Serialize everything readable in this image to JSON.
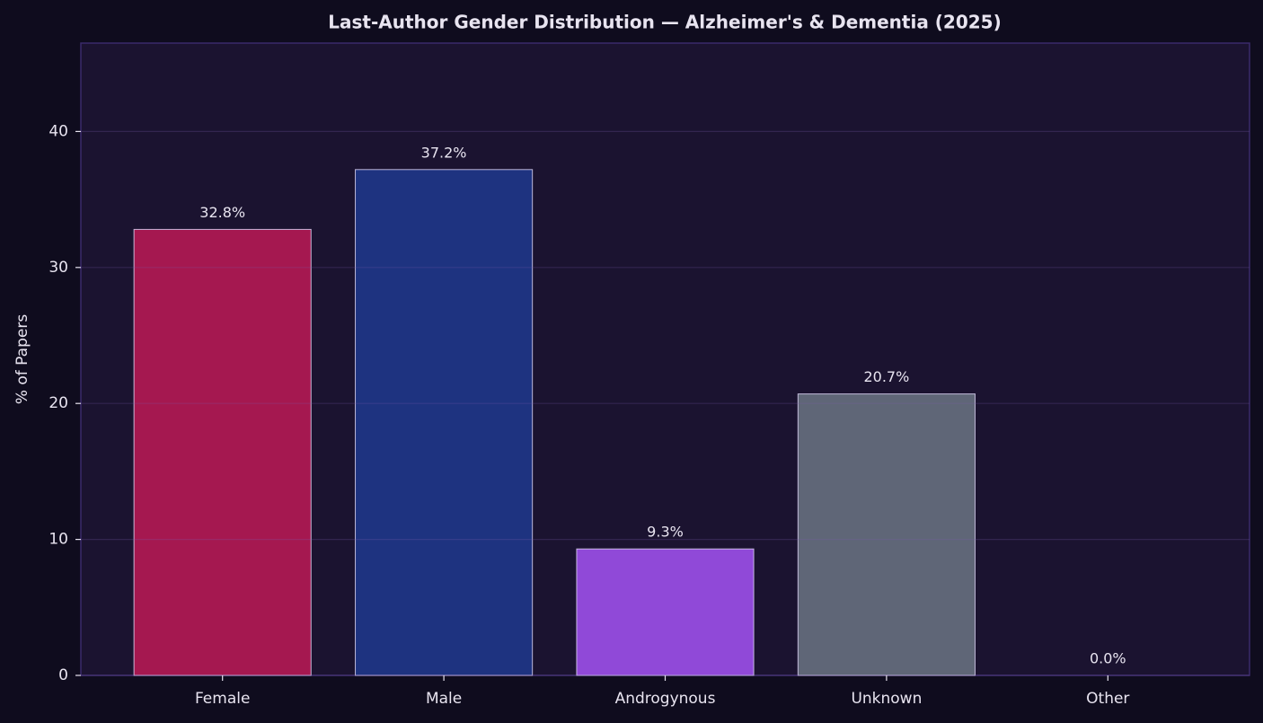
{
  "chart_data": {
    "type": "bar",
    "title": "Last-Author Gender Distribution — Alzheimer's & Dementia (2025)",
    "y_label": "% of Papers",
    "categories": [
      "Female",
      "Male",
      "Androgynous",
      "Unknown",
      "Other"
    ],
    "values": [
      32.8,
      37.2,
      9.3,
      20.7,
      0.0
    ],
    "value_labels": [
      "32.8%",
      "37.2%",
      "9.3%",
      "20.7%",
      "0.0%"
    ],
    "colors": [
      "#a51850",
      "#1e3380",
      "#9049d8",
      "#5f6677",
      "#7a6a9a"
    ],
    "ylim": [
      0,
      46.5
    ],
    "yticks": [
      0,
      10,
      20,
      30,
      40
    ],
    "grid": true
  }
}
